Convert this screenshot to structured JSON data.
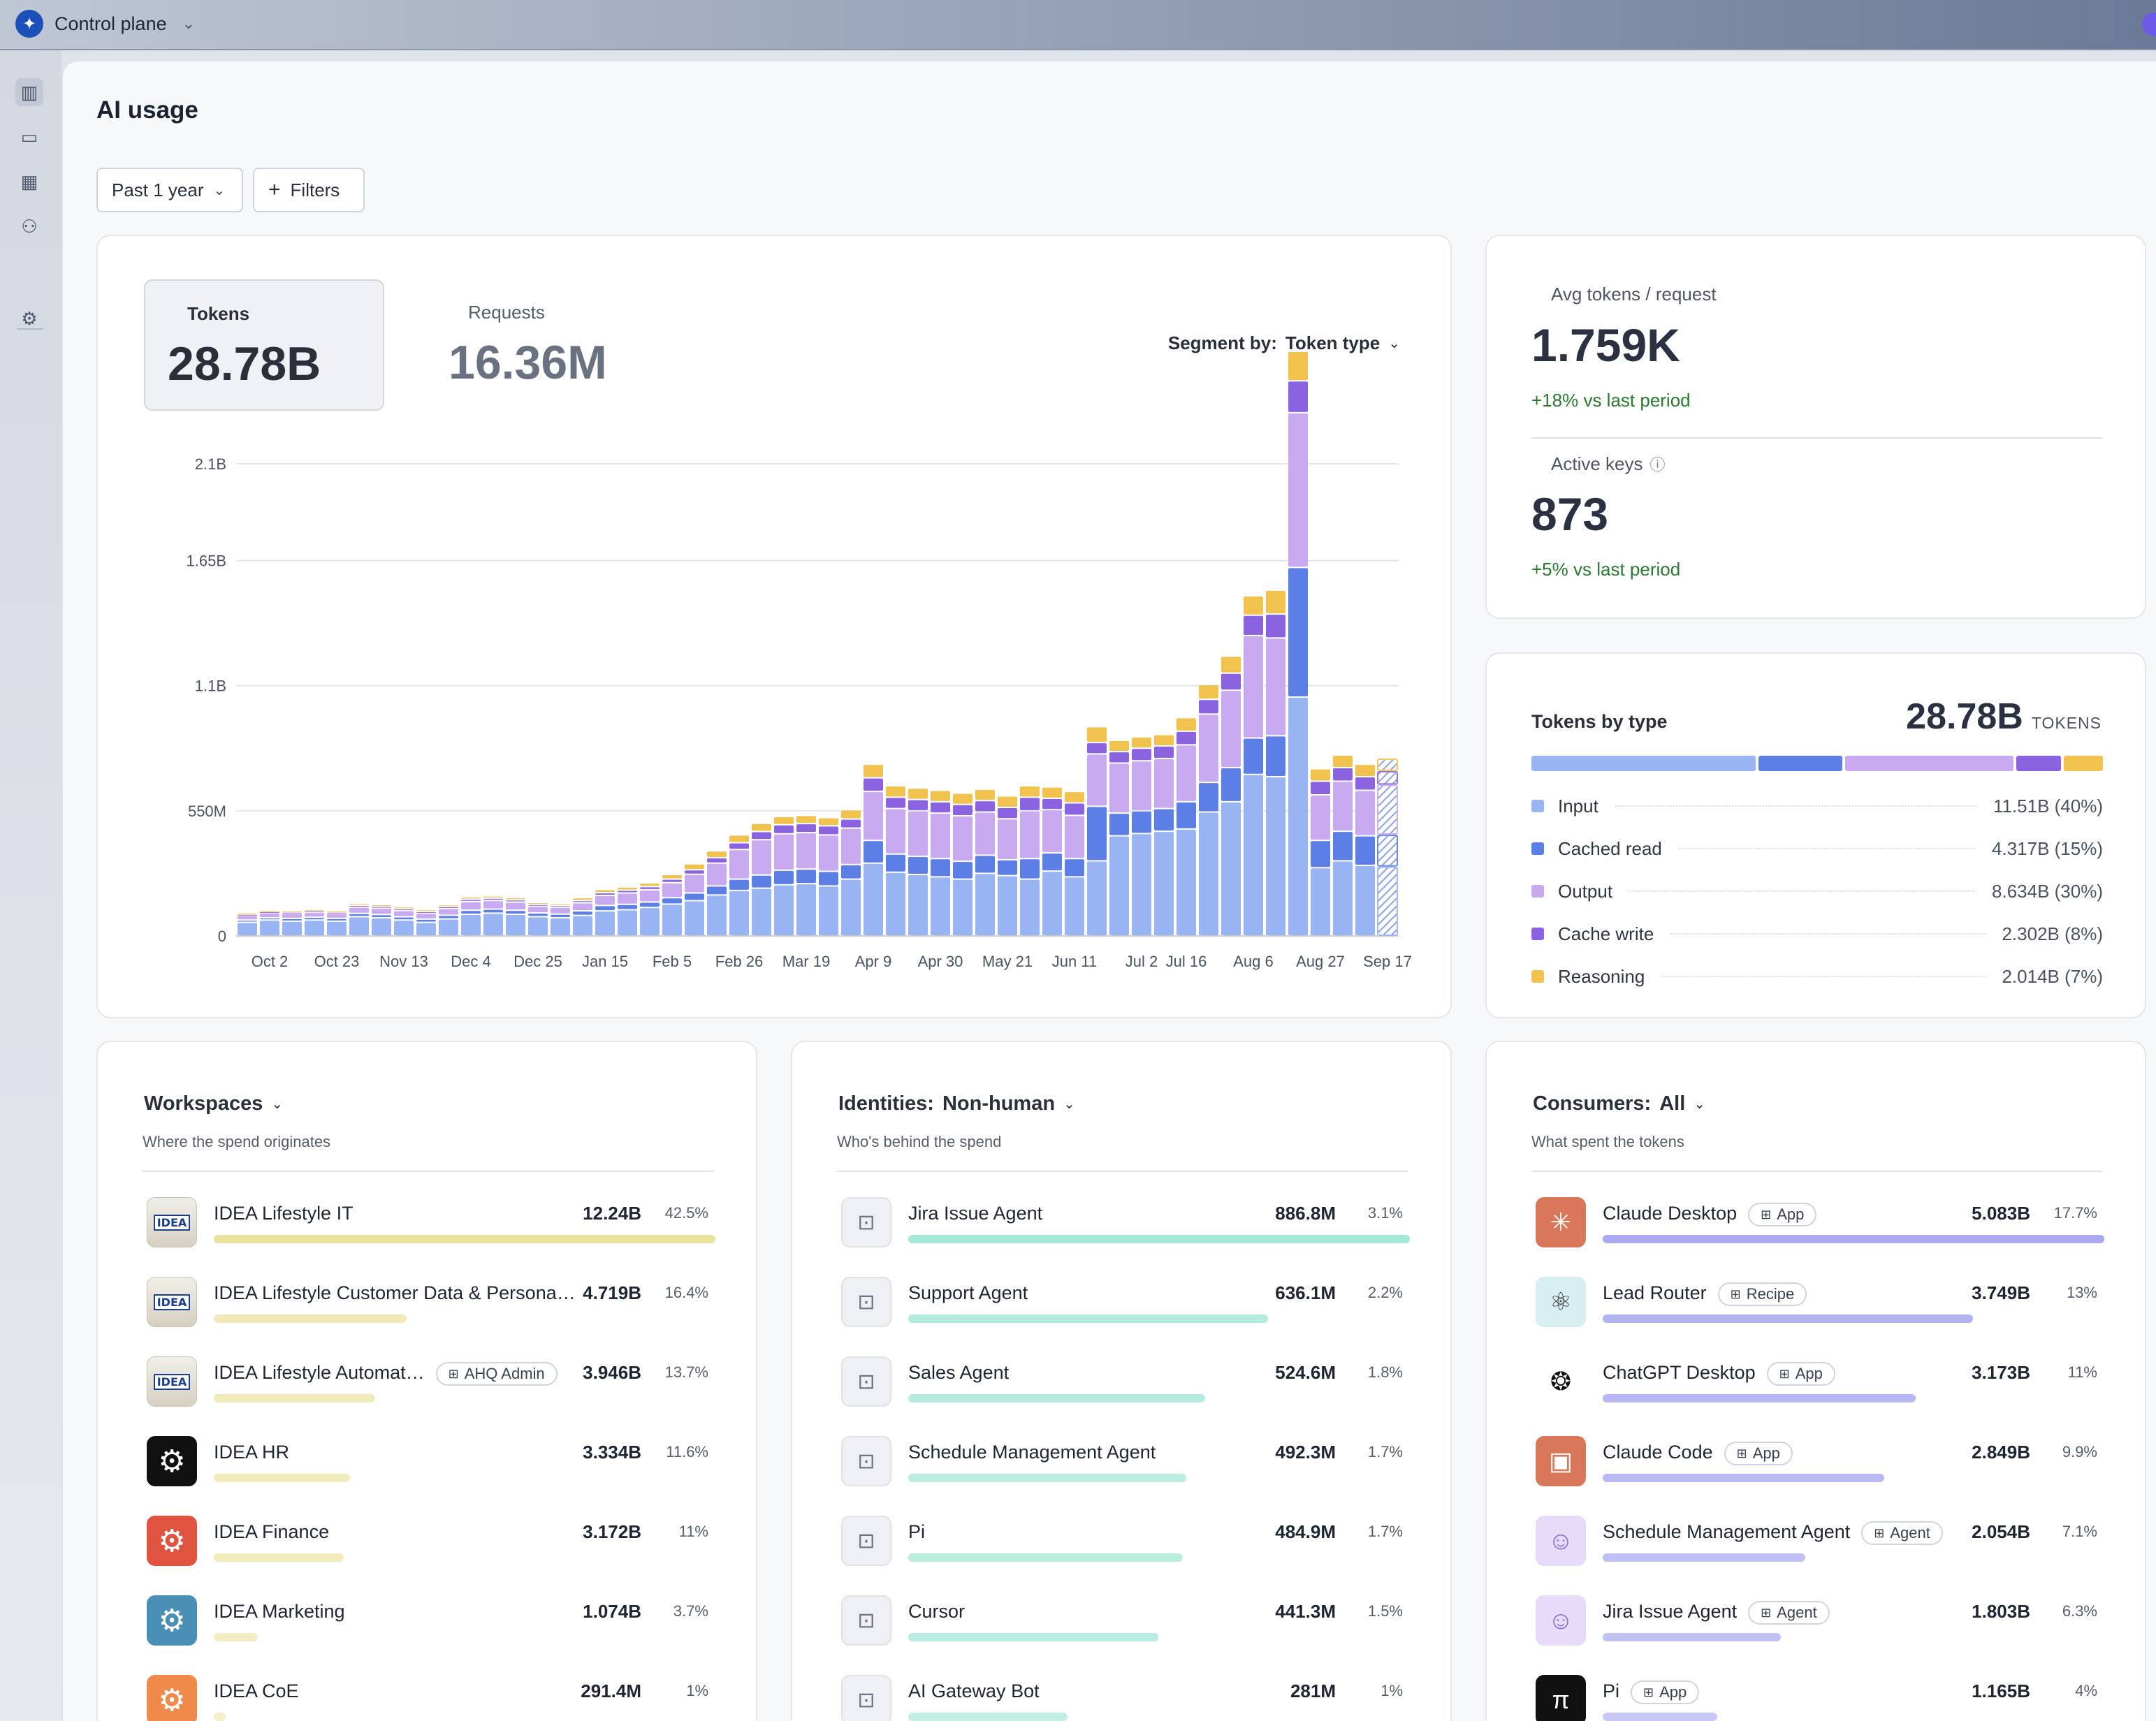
{
  "app": {
    "title": "Control plane"
  },
  "page": {
    "title": "AI usage",
    "range_label": "Past 1 year",
    "filters_label": "Filters"
  },
  "metrics": {
    "tokens": {
      "label": "Tokens",
      "value": "28.78B"
    },
    "requests": {
      "label": "Requests",
      "value": "16.36M"
    },
    "segment_label": "Segment by:",
    "segment_value": "Token type"
  },
  "chart_data": {
    "type": "bar",
    "stacked": true,
    "y_ticks": [
      "0",
      "550M",
      "1.1B",
      "1.65B",
      "2.1B"
    ],
    "ylim": [
      0,
      2100000000
    ],
    "x_tick_labels": [
      "Oct 2",
      "Oct 23",
      "Nov 13",
      "Dec 4",
      "Dec 25",
      "Jan 15",
      "Feb 5",
      "Feb 26",
      "Mar 19",
      "Apr 9",
      "Apr 30",
      "May 21",
      "Jun 11",
      "Jul 2",
      "Jul 16",
      "Aug 6",
      "Aug 27",
      "Sep 17"
    ],
    "x_tick_bar_index": [
      1,
      4,
      7,
      10,
      13,
      16,
      19,
      22,
      25,
      28,
      31,
      34,
      37,
      40,
      42,
      45,
      48,
      51
    ],
    "series": [
      {
        "name": "Input",
        "color": "#98b4f3",
        "values": [
          60,
          70,
          65,
          70,
          65,
          85,
          80,
          70,
          60,
          75,
          95,
          100,
          95,
          85,
          80,
          90,
          110,
          115,
          125,
          140,
          155,
          180,
          200,
          210,
          225,
          230,
          220,
          250,
          320,
          280,
          270,
          260,
          250,
          275,
          265,
          250,
          285,
          260,
          330,
          440,
          450,
          460,
          470,
          545,
          590,
          710,
          700,
          1050,
          300,
          330,
          310,
          305
        ]
      },
      {
        "name": "Cached read",
        "color": "#5b7fe4",
        "values": [
          10,
          10,
          12,
          12,
          12,
          14,
          14,
          14,
          14,
          16,
          18,
          18,
          18,
          16,
          16,
          20,
          24,
          24,
          24,
          28,
          34,
          40,
          50,
          58,
          64,
          64,
          64,
          64,
          100,
          80,
          80,
          80,
          78,
          80,
          70,
          90,
          80,
          80,
          240,
          100,
          100,
          100,
          120,
          130,
          150,
          160,
          180,
          570,
          120,
          130,
          130,
          140
        ]
      },
      {
        "name": "Output",
        "color": "#c9a9f0",
        "values": [
          20,
          22,
          22,
          22,
          22,
          28,
          28,
          28,
          26,
          30,
          38,
          38,
          36,
          30,
          30,
          36,
          44,
          50,
          54,
          66,
          82,
          100,
          130,
          155,
          160,
          160,
          160,
          160,
          215,
          200,
          200,
          200,
          200,
          190,
          180,
          210,
          190,
          190,
          230,
          220,
          220,
          220,
          250,
          300,
          340,
          450,
          430,
          680,
          200,
          220,
          200,
          220
        ]
      },
      {
        "name": "Cache write",
        "color": "#8b63e0",
        "values": [
          6,
          6,
          6,
          6,
          6,
          8,
          8,
          8,
          8,
          8,
          10,
          10,
          10,
          8,
          8,
          10,
          12,
          12,
          14,
          16,
          20,
          24,
          30,
          36,
          40,
          40,
          40,
          40,
          60,
          50,
          50,
          50,
          50,
          50,
          50,
          60,
          50,
          55,
          50,
          50,
          55,
          55,
          60,
          65,
          75,
          90,
          105,
          140,
          60,
          60,
          60,
          60
        ]
      },
      {
        "name": "Reasoning",
        "color": "#f2c24f",
        "values": [
          6,
          6,
          6,
          6,
          6,
          8,
          8,
          8,
          8,
          8,
          10,
          10,
          10,
          8,
          8,
          12,
          14,
          14,
          16,
          20,
          26,
          30,
          34,
          36,
          36,
          36,
          36,
          40,
          60,
          50,
          50,
          50,
          50,
          50,
          50,
          50,
          50,
          50,
          70,
          50,
          50,
          50,
          60,
          65,
          75,
          85,
          105,
          130,
          55,
          55,
          55,
          55
        ]
      }
    ],
    "partial_last_bar": true
  },
  "side_stats": {
    "avg": {
      "label": "Avg tokens / request",
      "value": "1.759K",
      "delta": "+18% vs last period"
    },
    "keys": {
      "label": "Active keys",
      "value": "873",
      "delta": "+5% vs last period"
    }
  },
  "tokens_by_type": {
    "title": "Tokens by type",
    "total": "28.78B",
    "unit": "TOKENS",
    "items": [
      {
        "name": "Input",
        "value": "11.51B (40%)",
        "share": 40,
        "color": "#98b4f3"
      },
      {
        "name": "Cached read",
        "value": "4.317B (15%)",
        "share": 15,
        "color": "#5b7fe4"
      },
      {
        "name": "Output",
        "value": "8.634B (30%)",
        "share": 30,
        "color": "#c9a9f0"
      },
      {
        "name": "Cache write",
        "value": "2.302B (8%)",
        "share": 8,
        "color": "#8b63e0"
      },
      {
        "name": "Reasoning",
        "value": "2.014B (7%)",
        "share": 7,
        "color": "#f2c24f"
      }
    ]
  },
  "workspaces": {
    "title": "Workspaces",
    "subtitle": "Where the spend originates",
    "bar_color": "#ebe29c",
    "rows": [
      {
        "name": "IDEA Lifestyle IT",
        "value": "12.24B",
        "pct": "42.5%",
        "share": 1.0,
        "icon": "idea-logo",
        "logo_text": "IDEA"
      },
      {
        "name": "IDEA Lifestyle Customer Data & Persona…",
        "value": "4.719B",
        "pct": "16.4%",
        "share": 0.385,
        "icon": "idea-logo",
        "logo_text": "IDEA"
      },
      {
        "name": "IDEA Lifestyle Automat…",
        "value": "3.946B",
        "pct": "13.7%",
        "share": 0.322,
        "icon": "idea-logo",
        "logo_text": "IDEA",
        "badge": "AHQ Admin"
      },
      {
        "name": "IDEA HR",
        "value": "3.334B",
        "pct": "11.6%",
        "share": 0.272,
        "icon": "gear-icon",
        "color": "#111111"
      },
      {
        "name": "IDEA Finance",
        "value": "3.172B",
        "pct": "11%",
        "share": 0.259,
        "icon": "gear-icon",
        "color": "#e0533f"
      },
      {
        "name": "IDEA Marketing",
        "value": "1.074B",
        "pct": "3.7%",
        "share": 0.088,
        "icon": "gear-icon",
        "color": "#4a8fb5"
      },
      {
        "name": "IDEA CoE",
        "value": "291.4M",
        "pct": "1%",
        "share": 0.024,
        "icon": "gear-icon",
        "color": "#f08a4b"
      }
    ]
  },
  "identities": {
    "title": "Identities:",
    "filter": "Non-human",
    "subtitle": "Who's behind the spend",
    "bar_color": "#a6e8d8",
    "rows": [
      {
        "name": "Jira Issue Agent",
        "value": "886.8M",
        "pct": "3.1%",
        "share": 1.0
      },
      {
        "name": "Support Agent",
        "value": "636.1M",
        "pct": "2.2%",
        "share": 0.717
      },
      {
        "name": "Sales Agent",
        "value": "524.6M",
        "pct": "1.8%",
        "share": 0.592
      },
      {
        "name": "Schedule Management Agent",
        "value": "492.3M",
        "pct": "1.7%",
        "share": 0.555
      },
      {
        "name": "Pi",
        "value": "484.9M",
        "pct": "1.7%",
        "share": 0.547
      },
      {
        "name": "Cursor",
        "value": "441.3M",
        "pct": "1.5%",
        "share": 0.498
      },
      {
        "name": "AI Gateway Bot",
        "value": "281M",
        "pct": "1%",
        "share": 0.317
      }
    ]
  },
  "consumers": {
    "title": "Consumers:",
    "filter": "All",
    "subtitle": "What spent the tokens",
    "bar_color": "#a8a9f0",
    "rows": [
      {
        "name": "Claude Desktop",
        "badge": "App",
        "value": "5.083B",
        "pct": "17.7%",
        "share": 1.0,
        "icon": "claude-icon",
        "bg": "#d9775a",
        "fg": "#ffffff",
        "glyph": "✳"
      },
      {
        "name": "Lead Router",
        "badge": "Recipe",
        "value": "3.749B",
        "pct": "13%",
        "share": 0.738,
        "icon": "atom-icon",
        "bg": "#d8eef0",
        "fg": "#333333",
        "glyph": "⚛"
      },
      {
        "name": "ChatGPT Desktop",
        "badge": "App",
        "value": "3.173B",
        "pct": "11%",
        "share": 0.624,
        "icon": "openai-icon",
        "bg": "#ffffff",
        "fg": "#111111",
        "glyph": "❂"
      },
      {
        "name": "Claude Code",
        "badge": "App",
        "value": "2.849B",
        "pct": "9.9%",
        "share": 0.561,
        "icon": "claude-code-icon",
        "bg": "#d9775a",
        "fg": "#ffffff",
        "glyph": "▣"
      },
      {
        "name": "Schedule Management Agent",
        "badge": "Agent",
        "value": "2.054B",
        "pct": "7.1%",
        "share": 0.404,
        "icon": "bot-icon",
        "bg": "#e6dcf9",
        "fg": "#8a68d9",
        "glyph": "☺"
      },
      {
        "name": "Jira Issue Agent",
        "badge": "Agent",
        "value": "1.803B",
        "pct": "6.3%",
        "share": 0.355,
        "icon": "bot-icon",
        "bg": "#e6dcf9",
        "fg": "#8a68d9",
        "glyph": "☺"
      },
      {
        "name": "Pi",
        "badge": "App",
        "value": "1.165B",
        "pct": "4%",
        "share": 0.229,
        "icon": "pi-icon",
        "bg": "#111111",
        "fg": "#ffffff",
        "glyph": "π"
      }
    ]
  }
}
